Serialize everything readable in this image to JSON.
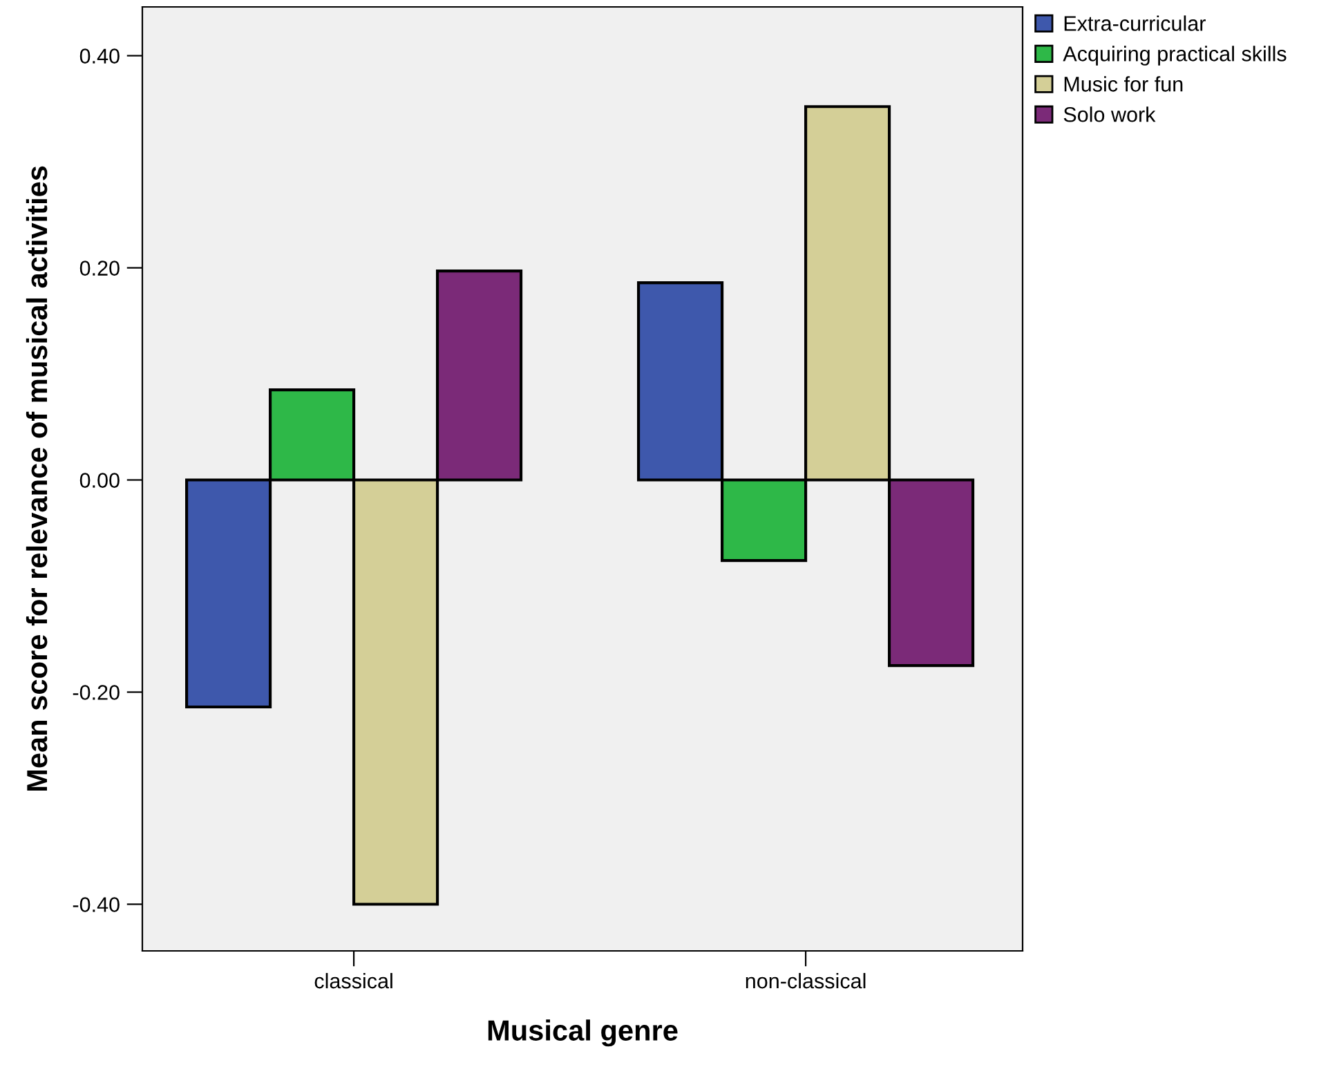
{
  "chart_data": {
    "type": "bar",
    "xlabel": "Musical genre",
    "ylabel": "Mean score for relevance of musical activities",
    "categories": [
      "classical",
      "non-classical"
    ],
    "series": [
      {
        "name": "Extra-curricular",
        "color": "#3e58ac",
        "values": [
          -0.214,
          0.186
        ]
      },
      {
        "name": "Acquiring practical skills",
        "color": "#2eb848",
        "values": [
          0.085,
          -0.076
        ]
      },
      {
        "name": "Music for fun",
        "color": "#d4cf97",
        "values": [
          -0.4,
          0.352
        ]
      },
      {
        "name": "Solo work",
        "color": "#7b2a78",
        "values": [
          0.197,
          -0.175
        ]
      }
    ],
    "ylim": [
      -0.444,
      0.446
    ],
    "yticks": [
      {
        "value": -0.4,
        "label": "-0.40"
      },
      {
        "value": -0.2,
        "label": "-0.20"
      },
      {
        "value": 0,
        "label": "0.00"
      },
      {
        "value": 0.2,
        "label": "0.20"
      },
      {
        "value": 0.4,
        "label": "0.40"
      }
    ],
    "grid": false,
    "legend": "top right"
  }
}
